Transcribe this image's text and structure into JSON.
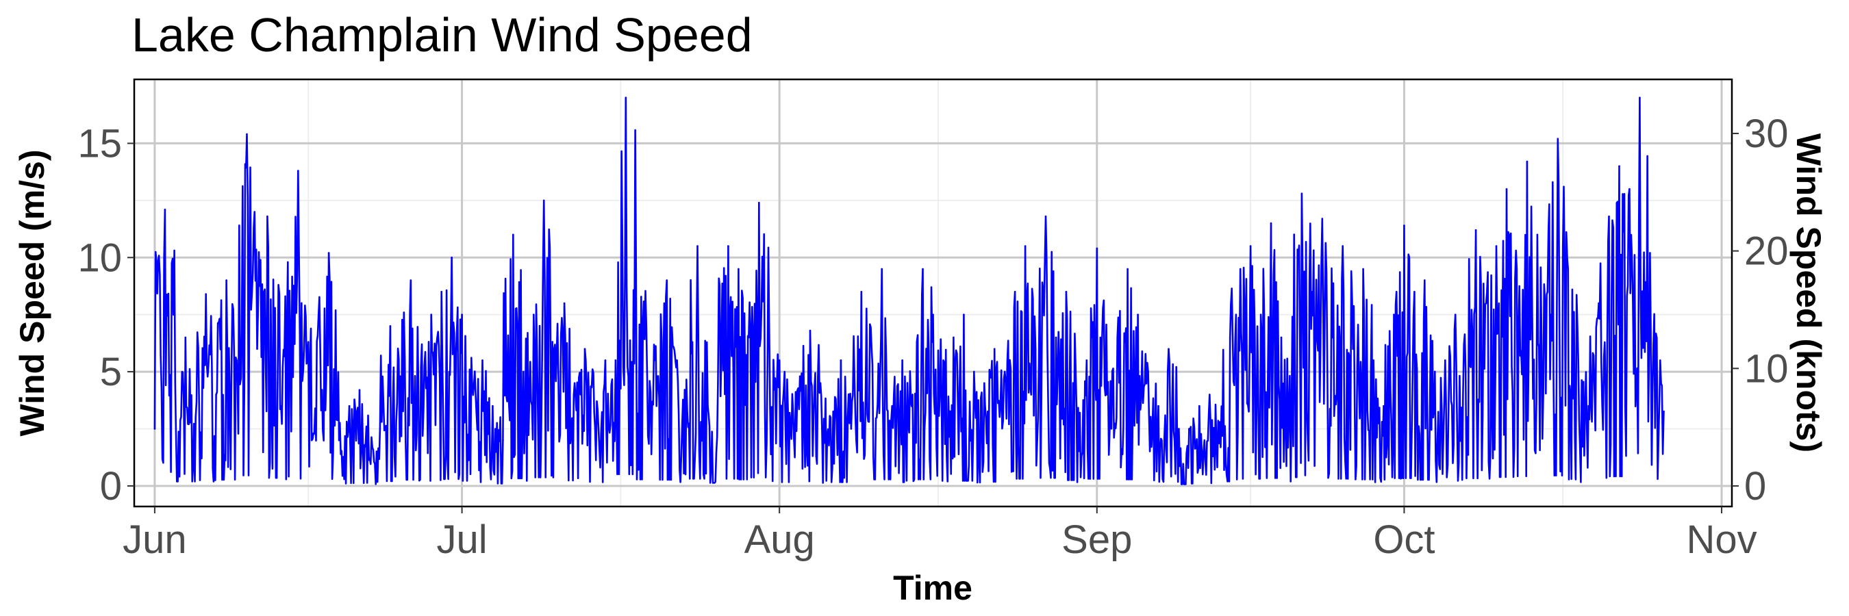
{
  "chart_data": {
    "type": "line",
    "title": "Lake Champlain Wind Speed",
    "xlabel": "Time",
    "ylabel": "Wind Speed (m/s)",
    "y2label": "Wind Speed (knots)",
    "x_tick_labels": [
      "Jun",
      "Jul",
      "Aug",
      "Sep",
      "Oct",
      "Nov"
    ],
    "y_ticks": [
      0,
      5,
      10,
      15
    ],
    "y2_ticks": [
      0,
      10,
      20,
      30
    ],
    "y2_per_y1": 1.94384,
    "xlim": [
      "2013-05-30",
      "2013-11-02"
    ],
    "ylim": [
      -0.9,
      17.8
    ],
    "x_start": "2013-06-01",
    "x_end": "2013-10-26",
    "grid": true,
    "line_color": "#0000ff",
    "series": [
      {
        "name": "",
        "x": [
          "2013-06-01",
          "2013-06-02",
          "2013-06-03",
          "2013-06-04",
          "2013-06-05",
          "2013-06-06",
          "2013-06-07",
          "2013-06-08",
          "2013-06-09",
          "2013-06-10",
          "2013-06-11",
          "2013-06-12",
          "2013-06-13",
          "2013-06-14",
          "2013-06-15",
          "2013-06-16",
          "2013-06-17",
          "2013-06-18",
          "2013-06-19",
          "2013-06-20",
          "2013-06-21",
          "2013-06-22",
          "2013-06-23",
          "2013-06-24",
          "2013-06-25",
          "2013-06-26",
          "2013-06-27",
          "2013-06-28",
          "2013-06-29",
          "2013-06-30",
          "2013-07-01",
          "2013-07-02",
          "2013-07-03",
          "2013-07-04",
          "2013-07-05",
          "2013-07-06",
          "2013-07-07",
          "2013-07-08",
          "2013-07-09",
          "2013-07-10",
          "2013-07-11",
          "2013-07-12",
          "2013-07-13",
          "2013-07-14",
          "2013-07-15",
          "2013-07-16",
          "2013-07-17",
          "2013-07-18",
          "2013-07-19",
          "2013-07-20",
          "2013-07-21",
          "2013-07-22",
          "2013-07-23",
          "2013-07-24",
          "2013-07-25",
          "2013-07-26",
          "2013-07-27",
          "2013-07-28",
          "2013-07-29",
          "2013-07-30",
          "2013-07-31",
          "2013-08-01",
          "2013-08-02",
          "2013-08-03",
          "2013-08-04",
          "2013-08-05",
          "2013-08-06",
          "2013-08-07",
          "2013-08-08",
          "2013-08-09",
          "2013-08-10",
          "2013-08-11",
          "2013-08-12",
          "2013-08-13",
          "2013-08-14",
          "2013-08-15",
          "2013-08-16",
          "2013-08-17",
          "2013-08-18",
          "2013-08-19",
          "2013-08-20",
          "2013-08-21",
          "2013-08-22",
          "2013-08-23",
          "2013-08-24",
          "2013-08-25",
          "2013-08-26",
          "2013-08-27",
          "2013-08-28",
          "2013-08-29",
          "2013-08-30",
          "2013-08-31",
          "2013-09-01",
          "2013-09-02",
          "2013-09-03",
          "2013-09-04",
          "2013-09-05",
          "2013-09-06",
          "2013-09-07",
          "2013-09-08",
          "2013-09-09",
          "2013-09-10",
          "2013-09-11",
          "2013-09-12",
          "2013-09-13",
          "2013-09-14",
          "2013-09-15",
          "2013-09-16",
          "2013-09-17",
          "2013-09-18",
          "2013-09-19",
          "2013-09-20",
          "2013-09-21",
          "2013-09-22",
          "2013-09-23",
          "2013-09-24",
          "2013-09-25",
          "2013-09-26",
          "2013-09-27",
          "2013-09-28",
          "2013-09-29",
          "2013-09-30",
          "2013-10-01",
          "2013-10-02",
          "2013-10-03",
          "2013-10-04",
          "2013-10-05",
          "2013-10-06",
          "2013-10-07",
          "2013-10-08",
          "2013-10-09",
          "2013-10-10",
          "2013-10-11",
          "2013-10-12",
          "2013-10-13",
          "2013-10-14",
          "2013-10-15",
          "2013-10-16",
          "2013-10-17",
          "2013-10-18",
          "2013-10-19",
          "2013-10-20",
          "2013-10-21",
          "2013-10-22",
          "2013-10-23",
          "2013-10-24",
          "2013-10-25",
          "2013-10-26"
        ],
        "values": [
          2.5,
          12.1,
          4.5,
          6.5,
          3.0,
          8.4,
          4.0,
          9.0,
          5.5,
          15.4,
          6.0,
          11.8,
          4.5,
          9.8,
          13.8,
          6.3,
          7.5,
          10.2,
          2.0,
          3.5,
          4.2,
          1.2,
          2.5,
          7.0,
          4.8,
          9.0,
          5.2,
          7.5,
          8.5,
          10.0,
          7.5,
          4.5,
          5.5,
          3.5,
          2.0,
          11.0,
          5.0,
          7.5,
          12.5,
          6.0,
          8.0,
          4.5,
          6.0,
          2.5,
          5.5,
          5.5,
          17.0,
          9.5,
          7.0,
          3.5,
          9.0,
          5.5,
          3.2,
          10.5,
          3.5,
          4.5,
          10.5,
          9.5,
          6.5,
          12.4,
          7.0,
          5.5,
          3.2,
          4.8,
          6.8,
          4.5,
          3.0,
          5.5,
          2.5,
          8.5,
          6.0,
          9.5,
          3.5,
          5.5,
          4.0,
          9.5,
          7.5,
          5.5,
          6.5,
          7.5,
          5.0,
          4.5,
          6.0,
          5.0,
          8.5,
          10.5,
          6.0,
          11.8,
          6.5,
          8.5,
          3.5,
          5.5,
          10.4,
          4.0,
          6.5,
          9.5,
          7.5,
          5.0,
          3.5,
          6.0,
          2.5,
          2.5,
          3.5,
          4.0,
          2.8,
          6.5,
          9.5,
          10.5,
          7.5,
          11.5,
          6.5,
          3.0,
          12.8,
          8.5,
          11.7,
          6.5,
          10.5,
          6.0,
          9.5,
          5.5,
          3.5,
          7.5,
          11.4,
          8.5,
          9.0,
          5.0,
          5.5,
          7.5,
          5.0,
          11.2,
          8.0,
          10.5,
          13.0,
          9.5,
          14.2,
          11.0,
          8.5,
          15.2,
          9.5,
          5.5,
          3.5,
          8.0,
          11.8,
          14.0,
          13.0,
          17.0,
          10.2,
          5.5
        ]
      }
    ]
  }
}
